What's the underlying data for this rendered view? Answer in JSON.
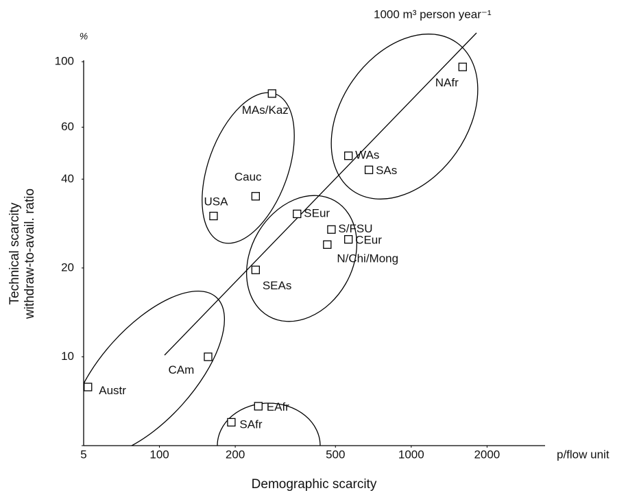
{
  "chart_data": {
    "type": "scatter",
    "annotation": "1000 m³ person year⁻¹",
    "x_label": "Demographic scarcity",
    "x_unit": "p/flow unit",
    "y_label": [
      "Technical scarcity",
      "withdraw-to-avail. ratio"
    ],
    "y_unit": "%",
    "x_scale": "log",
    "y_scale": "log",
    "xlim": [
      50,
      3400
    ],
    "ylim": [
      5,
      100
    ],
    "xticks": [
      100,
      200,
      500,
      1000,
      2000
    ],
    "yticks": [
      5,
      10,
      20,
      40,
      60,
      100
    ],
    "color": "#000000",
    "points": [
      {
        "label": "NAfr",
        "x": 1600,
        "y": 96
      },
      {
        "label": "MAs/Kaz",
        "x": 280,
        "y": 78
      },
      {
        "label": "WAs",
        "x": 563,
        "y": 48
      },
      {
        "label": "SAs",
        "x": 679,
        "y": 43
      },
      {
        "label": "Cauc",
        "x": 241,
        "y": 35
      },
      {
        "label": "USA",
        "x": 164,
        "y": 30
      },
      {
        "label": "SEur",
        "x": 352,
        "y": 30.5
      },
      {
        "label": "S/FSU",
        "x": 482,
        "y": 27
      },
      {
        "label": "CEur",
        "x": 563,
        "y": 25
      },
      {
        "label": "N/Chi/Mong",
        "x": 464,
        "y": 24
      },
      {
        "label": "SEAs",
        "x": 241,
        "y": 19.7
      },
      {
        "label": "CAm",
        "x": 156,
        "y": 10
      },
      {
        "label": "Austr",
        "x": 52,
        "y": 7.9
      },
      {
        "label": "EAfr",
        "x": 247,
        "y": 6.8
      },
      {
        "label": "SAfr",
        "x": 193,
        "y": 6.0
      }
    ]
  }
}
